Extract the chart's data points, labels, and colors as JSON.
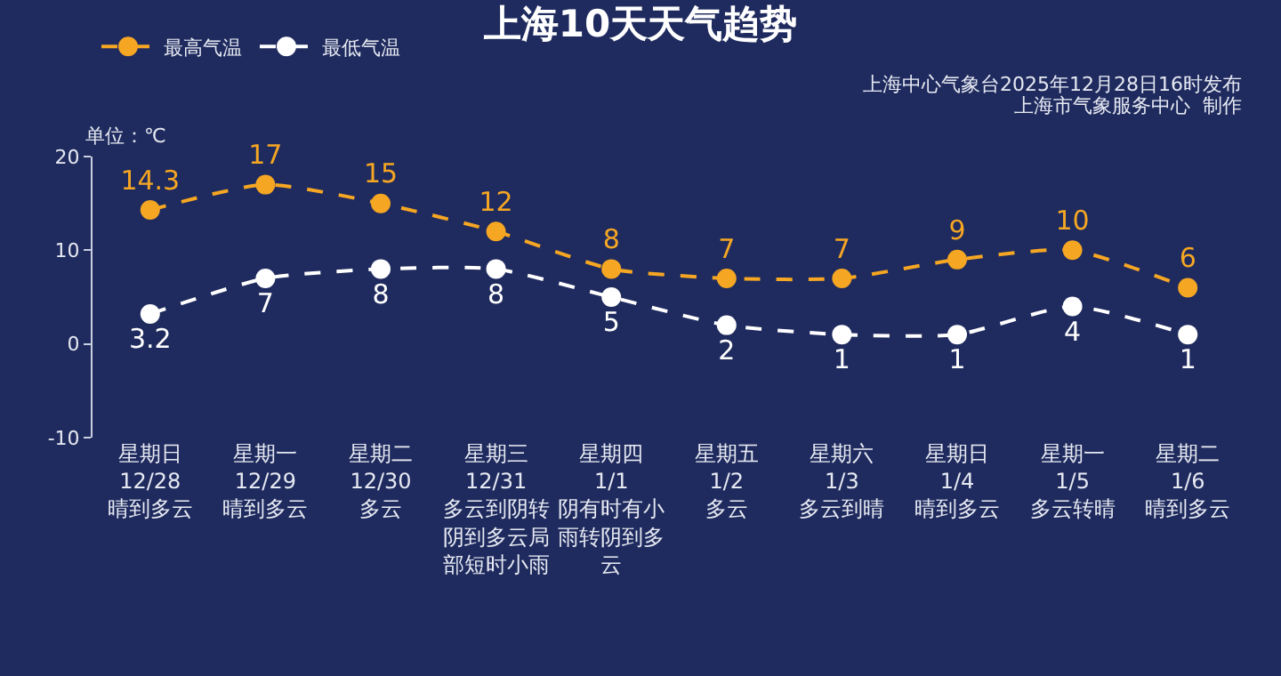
{
  "chart_data": {
    "type": "line",
    "title": "上海10天天气趋势",
    "ylabel": "单位：℃",
    "annotations": [
      "上海中心气象台2025年12月28日16时发布",
      "上海市气象服务中心  制作"
    ],
    "categories": [
      "星期日\n12/28\n晴到多云",
      "星期一\n12/29\n晴到多云",
      "星期二\n12/30\n多云",
      "星期三\n12/31\n多云到阴转阴到多云局部短时小雨",
      "星期四\n1/1\n阴有时有小雨转阴到多云",
      "星期五\n1/2\n多云",
      "星期六\n1/3\n多云到晴",
      "星期日\n1/4\n晴到多云",
      "星期一\n1/5\n多云转晴",
      "星期二\n1/6\n晴到多云"
    ],
    "series": [
      {
        "name": "最高气温",
        "color": "#f5a623",
        "values": [
          14.3,
          17,
          15,
          12,
          8,
          7,
          7,
          9,
          10,
          6
        ]
      },
      {
        "name": "最低气温",
        "color": "#ffffff",
        "values": [
          3.2,
          7,
          8,
          8,
          5,
          2,
          1,
          1,
          4,
          1
        ]
      }
    ],
    "ylim": [
      -10,
      20
    ],
    "yticks": [
      -10,
      0,
      10,
      20
    ],
    "grid": false,
    "legend": "top left",
    "marker": "circle",
    "line_style": "dashed",
    "data_labels": true
  }
}
